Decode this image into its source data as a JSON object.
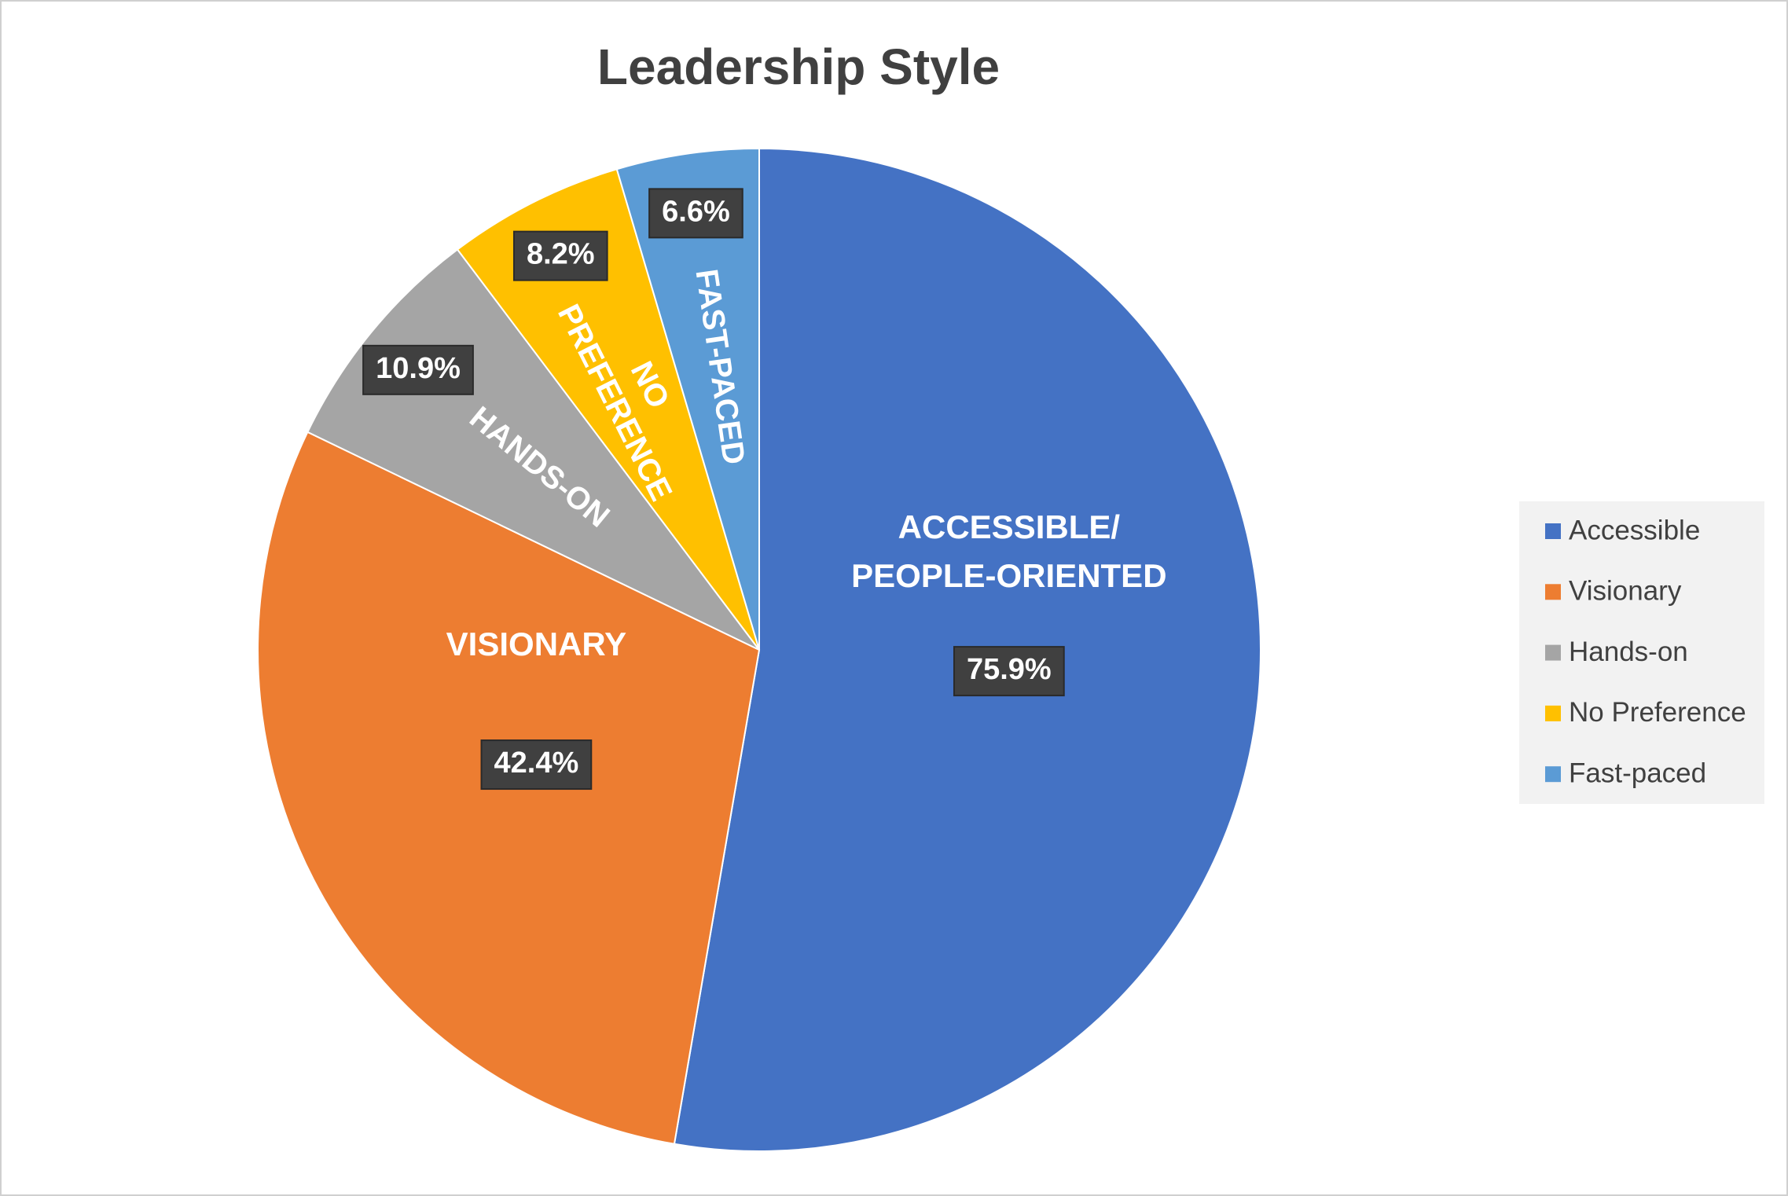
{
  "chart_data": {
    "type": "pie",
    "title": "Leadership Style",
    "categories": [
      "Accessible",
      "Visionary",
      "Hands-on",
      "No Preference",
      "Fast-paced"
    ],
    "slice_labels": [
      [
        "ACCESSIBLE/",
        "PEOPLE-ORIENTED"
      ],
      [
        "VISIONARY"
      ],
      [
        "HANDS-ON"
      ],
      [
        "NO",
        "PREFERENCE"
      ],
      [
        "FAST-PACED"
      ]
    ],
    "values": [
      75.9,
      42.4,
      10.9,
      8.2,
      6.6
    ],
    "value_labels": [
      "75.9%",
      "42.4%",
      "10.9%",
      "8.2%",
      "6.6%"
    ],
    "colors": [
      "#4472c4",
      "#ed7d31",
      "#a5a5a5",
      "#ffc000",
      "#5b9bd5"
    ],
    "legend": "right"
  }
}
